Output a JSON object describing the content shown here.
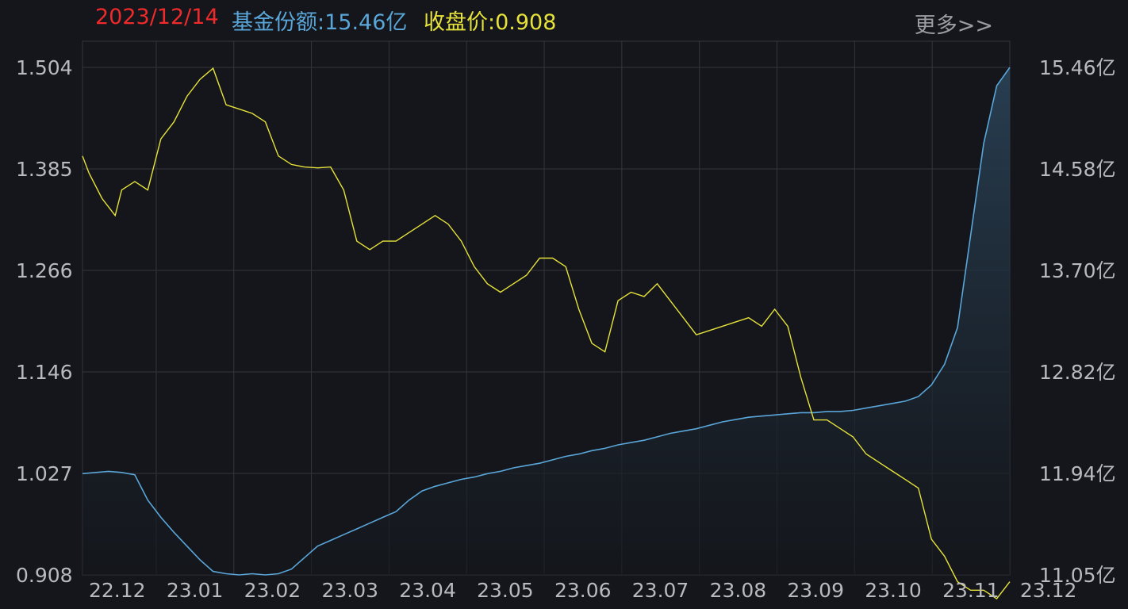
{
  "header": {
    "date": "2023/12/14",
    "share_label": "基金份额:15.46亿",
    "price_label": "收盘价:0.908",
    "more_label": "更多>>"
  },
  "colors": {
    "background": "#14161b",
    "grid": "#33363c",
    "price_line": "#e6e23a",
    "share_line": "#5aa6d9",
    "share_fill": "#1b2a38",
    "date_text": "#ee2a2a"
  },
  "chart_data": {
    "type": "line",
    "title": "",
    "x_labels": [
      "22.12",
      "23.01",
      "23.02",
      "23.03",
      "23.04",
      "23.05",
      "23.06",
      "23.07",
      "23.08",
      "23.09",
      "23.10",
      "23.11",
      "23.12"
    ],
    "y_left_ticks": [
      "1.504",
      "1.385",
      "1.266",
      "1.146",
      "1.027",
      "0.908"
    ],
    "y_left_range": [
      0.908,
      1.504
    ],
    "y_right_ticks": [
      "15.46亿",
      "14.58亿",
      "13.70亿",
      "12.82亿",
      "11.94亿",
      "11.05亿"
    ],
    "y_right_range": [
      11.05,
      15.46
    ],
    "grid": true,
    "series": [
      {
        "name": "收盘价",
        "axis": "left",
        "points": [
          [
            0,
            1.4
          ],
          [
            0.1,
            1.38
          ],
          [
            0.3,
            1.35
          ],
          [
            0.5,
            1.33
          ],
          [
            0.6,
            1.36
          ],
          [
            0.8,
            1.37
          ],
          [
            1.0,
            1.36
          ],
          [
            1.2,
            1.42
          ],
          [
            1.4,
            1.44
          ],
          [
            1.6,
            1.47
          ],
          [
            1.8,
            1.49
          ],
          [
            2.0,
            1.503
          ],
          [
            2.2,
            1.46
          ],
          [
            2.4,
            1.455
          ],
          [
            2.6,
            1.45
          ],
          [
            2.8,
            1.44
          ],
          [
            3.0,
            1.4
          ],
          [
            3.2,
            1.39
          ],
          [
            3.4,
            1.387
          ],
          [
            3.6,
            1.386
          ],
          [
            3.8,
            1.387
          ],
          [
            4.0,
            1.36
          ],
          [
            4.2,
            1.3
          ],
          [
            4.4,
            1.29
          ],
          [
            4.6,
            1.3
          ],
          [
            4.8,
            1.3
          ],
          [
            5.0,
            1.31
          ],
          [
            5.2,
            1.32
          ],
          [
            5.4,
            1.33
          ],
          [
            5.6,
            1.32
          ],
          [
            5.8,
            1.3
          ],
          [
            6.0,
            1.27
          ],
          [
            6.2,
            1.25
          ],
          [
            6.4,
            1.24
          ],
          [
            6.6,
            1.25
          ],
          [
            6.8,
            1.26
          ],
          [
            7.0,
            1.28
          ],
          [
            7.2,
            1.28
          ],
          [
            7.4,
            1.27
          ],
          [
            7.6,
            1.22
          ],
          [
            7.8,
            1.18
          ],
          [
            8.0,
            1.17
          ],
          [
            8.2,
            1.23
          ],
          [
            8.4,
            1.24
          ],
          [
            8.6,
            1.235
          ],
          [
            8.8,
            1.25
          ],
          [
            9.0,
            1.23
          ],
          [
            9.2,
            1.21
          ],
          [
            9.4,
            1.19
          ],
          [
            9.6,
            1.195
          ],
          [
            9.8,
            1.2
          ],
          [
            10.0,
            1.205
          ],
          [
            10.2,
            1.21
          ],
          [
            10.4,
            1.2
          ],
          [
            10.6,
            1.22
          ],
          [
            10.8,
            1.2
          ],
          [
            11.0,
            1.14
          ],
          [
            11.2,
            1.09
          ],
          [
            11.4,
            1.09
          ],
          [
            11.6,
            1.08
          ],
          [
            11.8,
            1.07
          ],
          [
            12.0,
            1.05
          ],
          [
            12.2,
            1.04
          ],
          [
            12.4,
            1.03
          ],
          [
            12.6,
            1.02
          ],
          [
            12.8,
            1.01
          ],
          [
            13.0,
            0.95
          ],
          [
            13.2,
            0.93
          ],
          [
            13.4,
            0.9
          ],
          [
            13.6,
            0.89
          ],
          [
            13.8,
            0.89
          ],
          [
            14.0,
            0.88
          ],
          [
            14.2,
            0.9
          ]
        ]
      },
      {
        "name": "基金份额",
        "axis": "right",
        "points": [
          [
            0,
            11.93
          ],
          [
            0.2,
            11.94
          ],
          [
            0.4,
            11.95
          ],
          [
            0.6,
            11.94
          ],
          [
            0.8,
            11.92
          ],
          [
            1.0,
            11.7
          ],
          [
            1.2,
            11.55
          ],
          [
            1.4,
            11.42
          ],
          [
            1.6,
            11.3
          ],
          [
            1.8,
            11.18
          ],
          [
            2.0,
            11.08
          ],
          [
            2.2,
            11.06
          ],
          [
            2.4,
            11.05
          ],
          [
            2.6,
            11.06
          ],
          [
            2.8,
            11.05
          ],
          [
            3.0,
            11.06
          ],
          [
            3.2,
            11.1
          ],
          [
            3.4,
            11.2
          ],
          [
            3.6,
            11.3
          ],
          [
            3.8,
            11.35
          ],
          [
            4.0,
            11.4
          ],
          [
            4.2,
            11.45
          ],
          [
            4.4,
            11.5
          ],
          [
            4.6,
            11.55
          ],
          [
            4.8,
            11.6
          ],
          [
            5.0,
            11.7
          ],
          [
            5.2,
            11.78
          ],
          [
            5.4,
            11.82
          ],
          [
            5.6,
            11.85
          ],
          [
            5.8,
            11.88
          ],
          [
            6.0,
            11.9
          ],
          [
            6.2,
            11.93
          ],
          [
            6.4,
            11.95
          ],
          [
            6.6,
            11.98
          ],
          [
            6.8,
            12.0
          ],
          [
            7.0,
            12.02
          ],
          [
            7.2,
            12.05
          ],
          [
            7.4,
            12.08
          ],
          [
            7.6,
            12.1
          ],
          [
            7.8,
            12.13
          ],
          [
            8.0,
            12.15
          ],
          [
            8.2,
            12.18
          ],
          [
            8.4,
            12.2
          ],
          [
            8.6,
            12.22
          ],
          [
            8.8,
            12.25
          ],
          [
            9.0,
            12.28
          ],
          [
            9.2,
            12.3
          ],
          [
            9.4,
            12.32
          ],
          [
            9.6,
            12.35
          ],
          [
            9.8,
            12.38
          ],
          [
            10.0,
            12.4
          ],
          [
            10.2,
            12.42
          ],
          [
            10.4,
            12.43
          ],
          [
            10.6,
            12.44
          ],
          [
            10.8,
            12.45
          ],
          [
            11.0,
            12.46
          ],
          [
            11.2,
            12.46
          ],
          [
            11.4,
            12.47
          ],
          [
            11.6,
            12.47
          ],
          [
            11.8,
            12.48
          ],
          [
            12.0,
            12.5
          ],
          [
            12.2,
            12.52
          ],
          [
            12.4,
            12.54
          ],
          [
            12.6,
            12.56
          ],
          [
            12.8,
            12.6
          ],
          [
            13.0,
            12.7
          ],
          [
            13.2,
            12.88
          ],
          [
            13.4,
            13.2
          ],
          [
            13.6,
            14.0
          ],
          [
            13.8,
            14.8
          ],
          [
            14.0,
            15.3
          ],
          [
            14.2,
            15.46
          ]
        ]
      }
    ]
  }
}
